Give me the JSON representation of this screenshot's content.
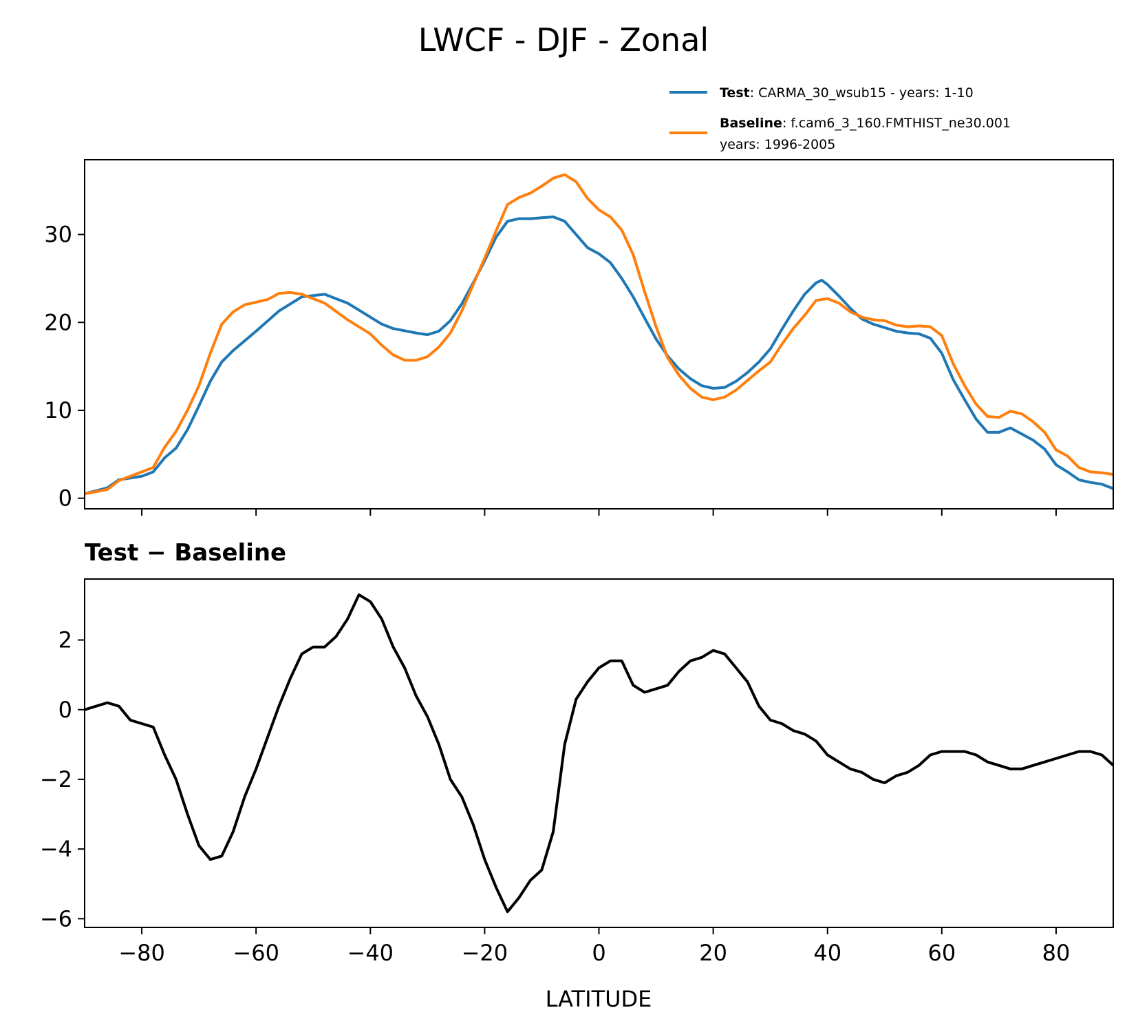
{
  "figure": {
    "title": "LWCF - DJF - Zonal"
  },
  "chart_data": [
    {
      "type": "line",
      "title": "",
      "xlabel": "",
      "ylabel": "",
      "xlim": [
        -90,
        90
      ],
      "ylim": [
        -1.2,
        38.5
      ],
      "xticks": [
        -80,
        -60,
        -40,
        -20,
        0,
        20,
        40,
        60,
        80
      ],
      "yticks": [
        0,
        10,
        20,
        30
      ],
      "ytick_labels": [
        "0",
        "10",
        "20",
        "30"
      ],
      "grid": false,
      "legend": {
        "placement": "above-right",
        "entries": [
          {
            "bold": "Test",
            "text": ": CARMA_30_wsub15 - years: 1-10",
            "text2": "",
            "color": "#1f77b4"
          },
          {
            "bold": "Baseline",
            "text": ": f.cam6_3_160.FMTHIST_ne30.001",
            "text2": "years: 1996-2005",
            "color": "#ff7f0e"
          }
        ]
      },
      "series": [
        {
          "name": "Test",
          "color": "#1f77b4",
          "x": [
            -90,
            -86,
            -84,
            -80,
            -78,
            -76,
            -74,
            -72,
            -70,
            -68,
            -66,
            -64,
            -60,
            -56,
            -52,
            -48,
            -44,
            -40,
            -38,
            -36,
            -32,
            -30,
            -28,
            -26,
            -24,
            -22,
            -20,
            -18,
            -16,
            -14,
            -12,
            -10,
            -8,
            -6,
            -4,
            -2,
            0,
            2,
            4,
            6,
            8,
            10,
            12,
            14,
            16,
            18,
            20,
            22,
            24,
            26,
            28,
            30,
            32,
            34,
            36,
            38,
            39,
            40,
            42,
            44,
            46,
            48,
            50,
            52,
            54,
            56,
            58,
            60,
            62,
            64,
            66,
            68,
            70,
            72,
            74,
            76,
            78,
            80,
            82,
            84,
            86,
            88,
            90
          ],
          "y": [
            0.5,
            1.2,
            2.1,
            2.5,
            3.0,
            4.6,
            5.7,
            7.8,
            10.5,
            13.3,
            15.5,
            16.8,
            19.0,
            21.3,
            22.9,
            23.2,
            22.2,
            20.6,
            19.8,
            19.3,
            18.8,
            18.6,
            19.0,
            20.2,
            22.1,
            24.5,
            27.0,
            29.7,
            31.5,
            31.8,
            31.8,
            31.9,
            32.0,
            31.5,
            30.0,
            28.5,
            27.8,
            26.8,
            25.0,
            22.9,
            20.5,
            18.1,
            16.2,
            14.7,
            13.6,
            12.8,
            12.5,
            12.6,
            13.3,
            14.3,
            15.5,
            17.0,
            19.2,
            21.3,
            23.2,
            24.5,
            24.8,
            24.3,
            23.0,
            21.6,
            20.4,
            19.8,
            19.4,
            19.0,
            18.8,
            18.7,
            18.2,
            16.5,
            13.5,
            11.2,
            9.0,
            7.5,
            7.5,
            8.0,
            7.3,
            6.6,
            5.6,
            3.8,
            3.0,
            2.1,
            1.8,
            1.6,
            1.1
          ]
        },
        {
          "name": "Baseline",
          "color": "#ff7f0e",
          "x": [
            -90,
            -86,
            -84,
            -80,
            -78,
            -76,
            -74,
            -72,
            -70,
            -68,
            -66,
            -64,
            -62,
            -60,
            -58,
            -56,
            -54,
            -52,
            -48,
            -44,
            -40,
            -38,
            -36,
            -34,
            -32,
            -30,
            -28,
            -26,
            -24,
            -22,
            -20,
            -18,
            -16,
            -14,
            -12,
            -10,
            -8,
            -6,
            -4,
            -2,
            0,
            2,
            4,
            6,
            8,
            10,
            12,
            14,
            16,
            18,
            20,
            22,
            24,
            26,
            28,
            30,
            32,
            34,
            36,
            38,
            40,
            42,
            44,
            46,
            48,
            50,
            52,
            54,
            56,
            58,
            60,
            62,
            64,
            66,
            68,
            70,
            72,
            74,
            76,
            78,
            80,
            82,
            84,
            86,
            88,
            90
          ],
          "y": [
            0.5,
            1.0,
            2.0,
            3.0,
            3.5,
            5.8,
            7.6,
            10.0,
            12.8,
            16.5,
            19.8,
            21.2,
            22.0,
            22.3,
            22.6,
            23.3,
            23.4,
            23.2,
            22.2,
            20.3,
            18.7,
            17.4,
            16.3,
            15.7,
            15.7,
            16.1,
            17.2,
            18.8,
            21.3,
            24.3,
            27.3,
            30.4,
            33.4,
            34.2,
            34.7,
            35.5,
            36.4,
            36.8,
            36.0,
            34.1,
            32.8,
            32.0,
            30.5,
            27.7,
            23.5,
            19.5,
            16.0,
            14.0,
            12.5,
            11.5,
            11.2,
            11.5,
            12.3,
            13.4,
            14.5,
            15.5,
            17.5,
            19.3,
            20.8,
            22.5,
            22.7,
            22.2,
            21.2,
            20.6,
            20.3,
            20.2,
            19.7,
            19.5,
            19.6,
            19.5,
            18.5,
            15.3,
            12.8,
            10.7,
            9.3,
            9.2,
            9.9,
            9.6,
            8.7,
            7.5,
            5.5,
            4.8,
            3.5,
            3.0,
            2.9,
            2.7
          ]
        }
      ]
    },
    {
      "type": "line",
      "title": "Test − Baseline",
      "xlabel": "LATITUDE",
      "ylabel": "",
      "xlim": [
        -90,
        90
      ],
      "ylim": [
        -6.25,
        3.75
      ],
      "xticks": [
        -80,
        -60,
        -40,
        -20,
        0,
        20,
        40,
        60,
        80
      ],
      "xtick_labels": [
        "−80",
        "−60",
        "−40",
        "−20",
        "0",
        "20",
        "40",
        "60",
        "80"
      ],
      "yticks": [
        -6,
        -4,
        -2,
        0,
        2
      ],
      "ytick_labels": [
        "−6",
        "−4",
        "−2",
        "0",
        "2"
      ],
      "grid": false,
      "series": [
        {
          "name": "Test − Baseline",
          "color": "#000000",
          "x": [
            -90,
            -88,
            -86,
            -84,
            -82,
            -80,
            -78,
            -76,
            -74,
            -72,
            -70,
            -68,
            -66,
            -64,
            -62,
            -60,
            -58,
            -56,
            -54,
            -52,
            -50,
            -48,
            -46,
            -44,
            -42,
            -40,
            -38,
            -36,
            -34,
            -32,
            -30,
            -28,
            -26,
            -24,
            -22,
            -20,
            -18,
            -16,
            -14,
            -12,
            -10,
            -8,
            -6,
            -4,
            -2,
            0,
            2,
            4,
            6,
            8,
            10,
            12,
            14,
            16,
            18,
            20,
            22,
            24,
            26,
            28,
            30,
            32,
            34,
            36,
            38,
            39,
            40,
            42,
            44,
            46,
            48,
            50,
            52,
            54,
            56,
            58,
            60,
            62,
            64,
            66,
            68,
            70,
            72,
            74,
            76,
            78,
            80,
            82,
            84,
            86,
            88,
            90
          ],
          "y": [
            0.0,
            0.1,
            0.2,
            0.1,
            -0.3,
            -0.4,
            -0.5,
            -1.3,
            -2.0,
            -3.0,
            -3.9,
            -4.3,
            -4.2,
            -3.5,
            -2.5,
            -1.7,
            -0.8,
            0.1,
            0.9,
            1.6,
            1.8,
            1.8,
            2.1,
            2.6,
            3.3,
            3.1,
            2.6,
            1.8,
            1.2,
            0.4,
            -0.2,
            -1.0,
            -2.0,
            -2.5,
            -3.3,
            -4.3,
            -5.1,
            -5.8,
            -5.4,
            -4.9,
            -4.6,
            -3.5,
            -1.0,
            0.3,
            0.8,
            1.2,
            1.4,
            1.4,
            0.7,
            0.5,
            0.6,
            0.7,
            1.1,
            1.4,
            1.5,
            1.7,
            1.6,
            1.2,
            0.8,
            0.1,
            -0.3,
            -0.4,
            -0.6,
            -0.7,
            -0.9,
            -1.1,
            -1.3,
            -1.5,
            -1.7,
            -1.8,
            -2.0,
            -2.1,
            -1.9,
            -1.8,
            -1.6,
            -1.3,
            -1.2,
            -1.2,
            -1.2,
            -1.3,
            -1.5,
            -1.6,
            -1.7,
            -1.7,
            -1.6,
            -1.5,
            -1.4,
            -1.3,
            -1.2,
            -1.2,
            -1.3,
            -1.6
          ]
        }
      ]
    }
  ]
}
